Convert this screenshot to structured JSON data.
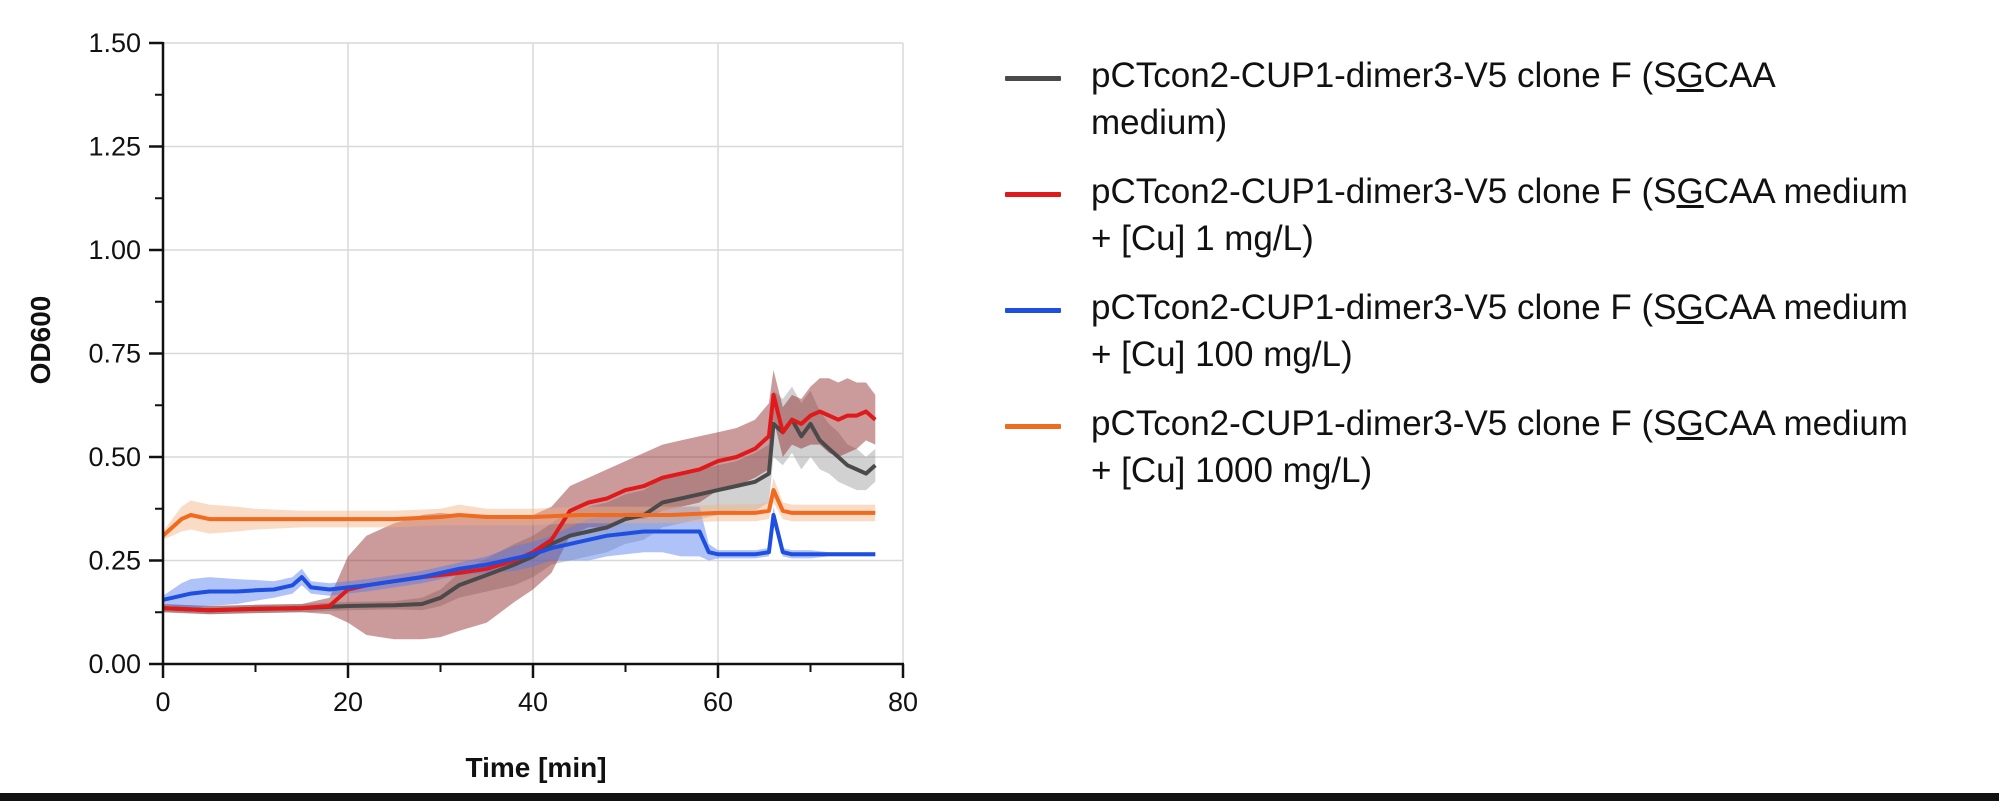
{
  "chart_data": {
    "type": "line",
    "xlabel": "Time [min]",
    "ylabel": "OD600",
    "xlim": [
      0,
      80
    ],
    "ylim": [
      0,
      1.5
    ],
    "x_ticks": [
      "0",
      "20",
      "40",
      "60",
      "80"
    ],
    "y_ticks": [
      "0.00",
      "0.25",
      "0.50",
      "0.75",
      "1.00",
      "1.25",
      "1.50"
    ],
    "grid": true,
    "legend_position": "right",
    "series": [
      {
        "name": "pCTcon2-CUP1-dimer3-V5 clone F (SGCAA medium)",
        "color": "#4a4a4a",
        "band_color": "#9a9a9a",
        "x": [
          0,
          5,
          10,
          15,
          20,
          25,
          28,
          30,
          32,
          35,
          38,
          40,
          42,
          44,
          46,
          48,
          50,
          52,
          54,
          56,
          58,
          60,
          62,
          64,
          65.5,
          66,
          67,
          68,
          69,
          70,
          71,
          72,
          73,
          74,
          75,
          76,
          77
        ],
        "y": [
          0.135,
          0.13,
          0.133,
          0.135,
          0.14,
          0.142,
          0.145,
          0.16,
          0.19,
          0.215,
          0.24,
          0.26,
          0.29,
          0.31,
          0.32,
          0.33,
          0.35,
          0.36,
          0.39,
          0.4,
          0.41,
          0.42,
          0.43,
          0.44,
          0.46,
          0.58,
          0.56,
          0.59,
          0.55,
          0.58,
          0.54,
          0.52,
          0.5,
          0.48,
          0.47,
          0.46,
          0.48
        ],
        "spread": [
          0.01,
          0.01,
          0.01,
          0.01,
          0.01,
          0.01,
          0.015,
          0.02,
          0.03,
          0.04,
          0.05,
          0.05,
          0.05,
          0.06,
          0.06,
          0.06,
          0.06,
          0.06,
          0.06,
          0.06,
          0.06,
          0.06,
          0.06,
          0.07,
          0.07,
          0.08,
          0.08,
          0.08,
          0.08,
          0.08,
          0.07,
          0.06,
          0.06,
          0.05,
          0.05,
          0.04,
          0.04
        ]
      },
      {
        "name": "pCTcon2-CUP1-dimer3-V5 clone F (SGCAA medium + [Cu] 1 mg/L)",
        "color": "#e0191b",
        "band_color": "#8b2020",
        "x": [
          0,
          5,
          10,
          15,
          18,
          20,
          22,
          25,
          28,
          30,
          32,
          35,
          38,
          40,
          42,
          44,
          46,
          48,
          50,
          52,
          54,
          56,
          58,
          60,
          62,
          64,
          65.5,
          66,
          67,
          68,
          69,
          70,
          71,
          72,
          73,
          74,
          75,
          76,
          77
        ],
        "y": [
          0.135,
          0.13,
          0.133,
          0.135,
          0.14,
          0.18,
          0.19,
          0.2,
          0.21,
          0.215,
          0.22,
          0.23,
          0.25,
          0.27,
          0.3,
          0.37,
          0.39,
          0.4,
          0.42,
          0.43,
          0.45,
          0.46,
          0.47,
          0.49,
          0.5,
          0.52,
          0.55,
          0.65,
          0.56,
          0.59,
          0.58,
          0.6,
          0.61,
          0.6,
          0.59,
          0.6,
          0.6,
          0.61,
          0.59
        ],
        "spread": [
          0.01,
          0.01,
          0.01,
          0.01,
          0.02,
          0.08,
          0.12,
          0.14,
          0.15,
          0.15,
          0.14,
          0.13,
          0.1,
          0.09,
          0.08,
          0.06,
          0.06,
          0.07,
          0.07,
          0.08,
          0.08,
          0.08,
          0.08,
          0.07,
          0.07,
          0.07,
          0.08,
          0.06,
          0.06,
          0.06,
          0.06,
          0.07,
          0.08,
          0.09,
          0.09,
          0.09,
          0.08,
          0.07,
          0.06
        ]
      },
      {
        "name": "pCTcon2-CUP1-dimer3-V5 clone F (SGCAA medium + [Cu] 100 mg/L)",
        "color": "#1f4fe0",
        "band_color": "#4f7af0",
        "x": [
          0,
          1,
          2,
          3,
          5,
          8,
          10,
          12,
          14,
          15,
          16,
          18,
          20,
          22,
          25,
          28,
          30,
          32,
          35,
          38,
          40,
          42,
          44,
          46,
          48,
          50,
          52,
          54,
          56,
          58,
          59,
          60,
          62,
          64,
          65.5,
          66,
          67,
          68,
          70,
          72,
          74,
          76,
          77
        ],
        "y": [
          0.155,
          0.16,
          0.165,
          0.17,
          0.175,
          0.175,
          0.178,
          0.18,
          0.19,
          0.21,
          0.185,
          0.18,
          0.185,
          0.19,
          0.2,
          0.21,
          0.22,
          0.23,
          0.24,
          0.255,
          0.265,
          0.28,
          0.29,
          0.3,
          0.31,
          0.315,
          0.32,
          0.32,
          0.32,
          0.32,
          0.27,
          0.265,
          0.265,
          0.265,
          0.27,
          0.36,
          0.27,
          0.265,
          0.265,
          0.265,
          0.265,
          0.265,
          0.265
        ],
        "spread": [
          0.01,
          0.02,
          0.03,
          0.035,
          0.035,
          0.03,
          0.025,
          0.02,
          0.02,
          0.02,
          0.015,
          0.015,
          0.015,
          0.015,
          0.015,
          0.015,
          0.015,
          0.015,
          0.02,
          0.03,
          0.03,
          0.03,
          0.04,
          0.05,
          0.05,
          0.05,
          0.05,
          0.05,
          0.06,
          0.06,
          0.02,
          0.01,
          0.01,
          0.01,
          0.01,
          0.02,
          0.01,
          0.01,
          0.01,
          0.005,
          0.005,
          0.005,
          0.005
        ]
      },
      {
        "name": "pCTcon2-CUP1-dimer3-V5 clone F (SGCAA medium + [Cu] 1000 mg/L)",
        "color": "#f06a20",
        "band_color": "#f3b080",
        "x": [
          0,
          1,
          2,
          3,
          5,
          8,
          10,
          15,
          20,
          25,
          30,
          32,
          35,
          40,
          45,
          50,
          55,
          60,
          62,
          64,
          65.5,
          66,
          67,
          68,
          70,
          72,
          74,
          76,
          77
        ],
        "y": [
          0.31,
          0.33,
          0.35,
          0.36,
          0.35,
          0.35,
          0.35,
          0.35,
          0.35,
          0.35,
          0.355,
          0.36,
          0.355,
          0.355,
          0.36,
          0.36,
          0.36,
          0.365,
          0.365,
          0.365,
          0.37,
          0.42,
          0.37,
          0.365,
          0.365,
          0.365,
          0.365,
          0.365,
          0.365
        ],
        "spread": [
          0.01,
          0.02,
          0.03,
          0.035,
          0.035,
          0.03,
          0.025,
          0.02,
          0.02,
          0.02,
          0.02,
          0.025,
          0.02,
          0.02,
          0.02,
          0.02,
          0.02,
          0.02,
          0.02,
          0.02,
          0.02,
          0.03,
          0.02,
          0.02,
          0.02,
          0.02,
          0.02,
          0.02,
          0.02
        ]
      }
    ]
  },
  "legend": {
    "items": [
      {
        "prefix": "pCTcon2-CUP1-dimer3-V5 clone F (S",
        "underlined": "G",
        "suffix": "CAA medium)"
      },
      {
        "prefix": "pCTcon2-CUP1-dimer3-V5 clone F (S",
        "underlined": "G",
        "suffix": "CAA medium + [Cu] 1 mg/L)"
      },
      {
        "prefix": "pCTcon2-CUP1-dimer3-V5 clone F (S",
        "underlined": "G",
        "suffix": "CAA medium + [Cu] 100 mg/L)"
      },
      {
        "prefix": "pCTcon2-CUP1-dimer3-V5 clone F (S",
        "underlined": "G",
        "suffix": "CAA medium + [Cu] 1000 mg/L)"
      }
    ]
  }
}
